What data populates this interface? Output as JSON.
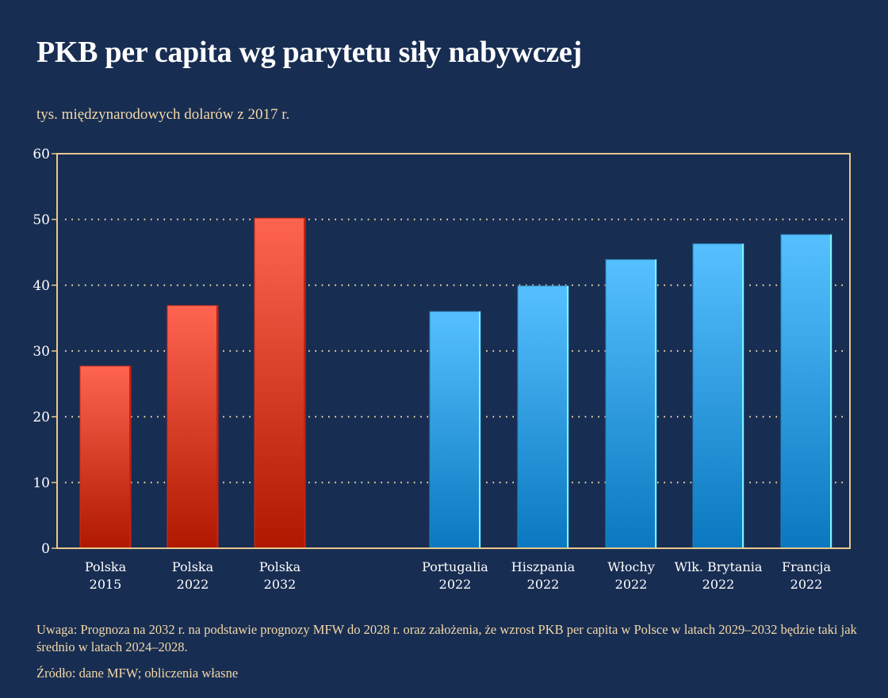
{
  "chart_data": {
    "type": "bar",
    "title": "PKB per capita wg parytetu siły nabywczej",
    "subtitle": "tys. międzynarodowych dolarów z 2017 r.",
    "xlabel": "",
    "ylabel": "",
    "ylim": [
      0,
      60
    ],
    "yticks": [
      "0",
      "10",
      "20",
      "30",
      "40",
      "50",
      "60"
    ],
    "grid": true,
    "categories": [
      {
        "line1": "Polska",
        "line2": "2015"
      },
      {
        "line1": "Polska",
        "line2": "2022"
      },
      {
        "line1": "Polska",
        "line2": "2032"
      },
      {
        "line1": "Portugalia",
        "line2": "2022"
      },
      {
        "line1": "Hiszpania",
        "line2": "2022"
      },
      {
        "line1": "Włochy",
        "line2": "2022"
      },
      {
        "line1": "Wlk. Brytania",
        "line2": "2022"
      },
      {
        "line1": "Francja",
        "line2": "2022"
      }
    ],
    "values": [
      27.7,
      36.9,
      50.2,
      36.0,
      39.9,
      43.9,
      46.3,
      47.7
    ],
    "groups": [
      "poland",
      "poland",
      "poland",
      "other",
      "other",
      "other",
      "other",
      "other"
    ],
    "colors": {
      "poland_top": "#ff6450",
      "poland_bottom": "#b01800",
      "other_top": "#56c0ff",
      "other_bottom": "#0a78c0",
      "axis": "#e8c88a",
      "grid": "#e8d4a4",
      "background": "#182d52"
    }
  },
  "footer": {
    "note": "Uwaga: Prognoza na 2032 r. na podstawie prognozy MFW do 2028 r. oraz założenia, że wzrost PKB per capita w Polsce w latach 2029–2032 będzie taki jak średnio w latach 2024–2028.",
    "source": "Źródło: dane MFW; obliczenia własne"
  }
}
